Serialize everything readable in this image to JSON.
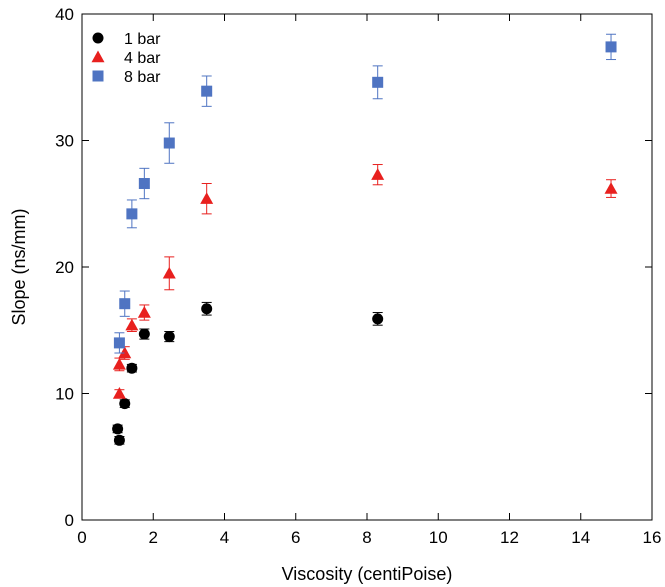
{
  "chart_data": {
    "type": "scatter",
    "xlabel": "Viscosity (centiPoise)",
    "ylabel": "Slope (ns/mm)",
    "xlim": [
      0,
      16
    ],
    "ylim": [
      0,
      40
    ],
    "xticks": [
      0,
      2,
      4,
      6,
      8,
      10,
      12,
      14,
      16
    ],
    "yticks": [
      0,
      10,
      20,
      30,
      40
    ],
    "grid": false,
    "legend_position": "top-left",
    "series": [
      {
        "name": "1 bar",
        "marker": "circle",
        "color": "#000000",
        "points": [
          {
            "x": 1.0,
            "y": 7.2,
            "err": 0.3
          },
          {
            "x": 1.05,
            "y": 6.3,
            "err": 0.3
          },
          {
            "x": 1.2,
            "y": 9.2,
            "err": 0.3
          },
          {
            "x": 1.4,
            "y": 12.0,
            "err": 0.3
          },
          {
            "x": 1.75,
            "y": 14.7,
            "err": 0.4
          },
          {
            "x": 2.45,
            "y": 14.5,
            "err": 0.4
          },
          {
            "x": 3.5,
            "y": 16.7,
            "err": 0.5
          },
          {
            "x": 8.3,
            "y": 15.9,
            "err": 0.5
          }
        ]
      },
      {
        "name": "4 bar",
        "marker": "triangle",
        "color": "#e8201e",
        "points": [
          {
            "x": 1.05,
            "y": 10.0,
            "err": 0.3
          },
          {
            "x": 1.05,
            "y": 12.3,
            "err": 0.5
          },
          {
            "x": 1.2,
            "y": 13.2,
            "err": 0.5
          },
          {
            "x": 1.4,
            "y": 15.4,
            "err": 0.5
          },
          {
            "x": 1.75,
            "y": 16.4,
            "err": 0.6
          },
          {
            "x": 2.45,
            "y": 19.5,
            "err": 1.3
          },
          {
            "x": 3.5,
            "y": 25.4,
            "err": 1.2
          },
          {
            "x": 8.3,
            "y": 27.3,
            "err": 0.8
          },
          {
            "x": 14.85,
            "y": 26.2,
            "err": 0.7
          }
        ]
      },
      {
        "name": "8 bar",
        "marker": "square",
        "color": "#4f74c2",
        "points": [
          {
            "x": 1.05,
            "y": 14.0,
            "err": 0.8
          },
          {
            "x": 1.2,
            "y": 17.1,
            "err": 1.0
          },
          {
            "x": 1.4,
            "y": 24.2,
            "err": 1.1
          },
          {
            "x": 1.75,
            "y": 26.6,
            "err": 1.2
          },
          {
            "x": 2.45,
            "y": 29.8,
            "err": 1.6
          },
          {
            "x": 3.5,
            "y": 33.9,
            "err": 1.2
          },
          {
            "x": 8.3,
            "y": 34.6,
            "err": 1.3
          },
          {
            "x": 14.85,
            "y": 37.4,
            "err": 1.0
          }
        ]
      }
    ]
  }
}
